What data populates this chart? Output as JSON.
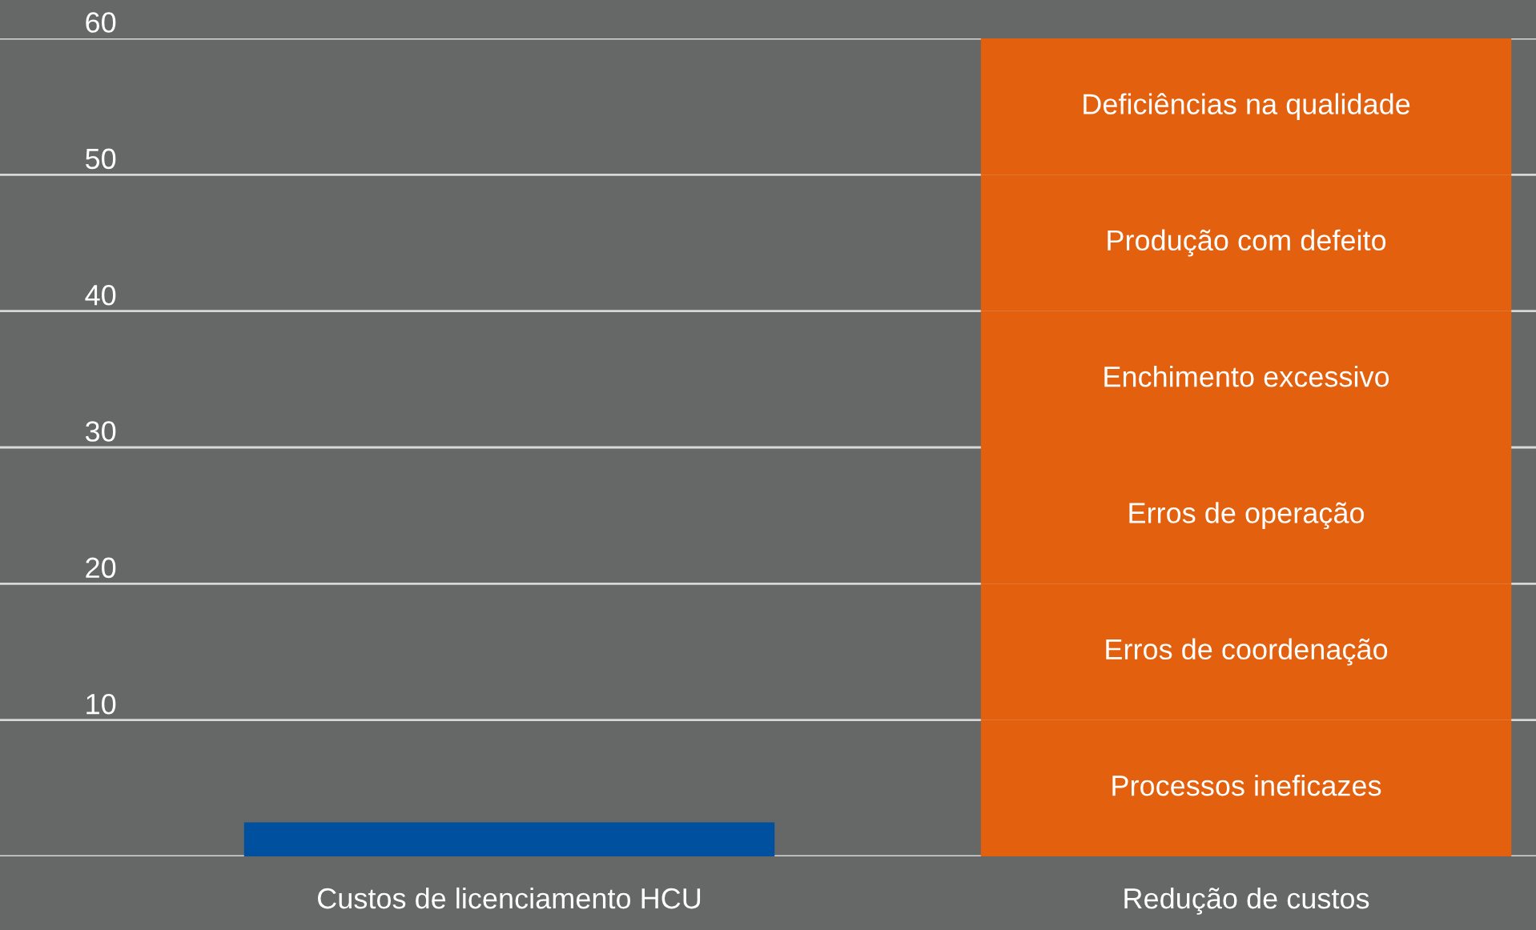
{
  "chart_data": {
    "type": "bar",
    "stacked": true,
    "categories": [
      "Custos de licenciamento HCU",
      "Redução de custos"
    ],
    "series": [
      {
        "color": "#0050a0",
        "values": [
          2.5,
          null
        ]
      },
      {
        "name": "Processos ineficazes",
        "color": "#e3600f",
        "values": [
          null,
          10
        ]
      },
      {
        "name": "Erros de coordenação",
        "color": "#e3600f",
        "values": [
          null,
          10
        ]
      },
      {
        "name": "Erros de operação",
        "color": "#e3600f",
        "values": [
          null,
          10
        ]
      },
      {
        "name": "Enchimento excessivo",
        "color": "#e3600f",
        "values": [
          null,
          10
        ]
      },
      {
        "name": "Produção com defeito",
        "color": "#e3600f",
        "values": [
          null,
          10
        ]
      },
      {
        "name": "Deficiências na qualidade",
        "color": "#e3600f",
        "values": [
          null,
          10
        ]
      }
    ],
    "ylim": [
      0,
      60
    ],
    "yticks": [
      {
        "value": 0,
        "label": null
      },
      10,
      20,
      30,
      40,
      50,
      60
    ],
    "grid": "y"
  }
}
